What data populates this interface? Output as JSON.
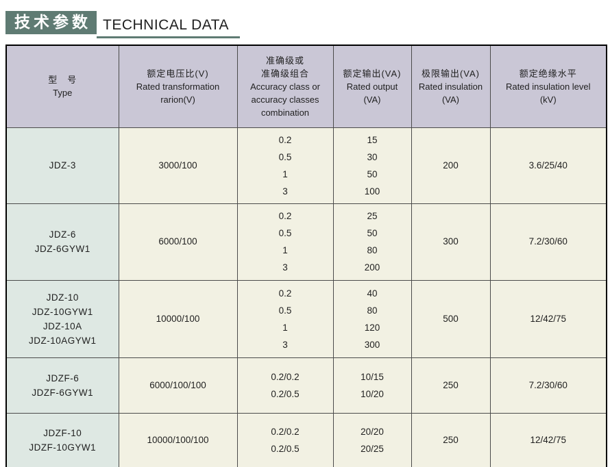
{
  "header": {
    "title_zh": "技术参数",
    "title_en": "TECHNICAL DATA"
  },
  "colors": {
    "accent_green": "#5f7b73",
    "table_header_bg": "#cac7d6",
    "type_column_bg": "#dee8e3",
    "data_cell_bg": "#f2f1e3",
    "outer_border": "#000000",
    "inner_border": "#4a4a4a"
  },
  "table": {
    "header": [
      {
        "zh_lines": [
          "型　号"
        ],
        "en_lines": [
          "Type"
        ]
      },
      {
        "zh_lines": [
          "额定电压比(V)"
        ],
        "en_lines": [
          "Rated transformation",
          "rarion(V)"
        ]
      },
      {
        "zh_lines": [
          "准确级或",
          "准确级组合"
        ],
        "en_lines": [
          "Accuracy class or",
          "accuracy classes",
          "combination"
        ]
      },
      {
        "zh_lines": [
          "额定输出(VA)"
        ],
        "en_lines": [
          "Rated output",
          "(VA)"
        ]
      },
      {
        "zh_lines": [
          "极限输出(VA)"
        ],
        "en_lines": [
          "Rated insulation",
          "(VA)"
        ]
      },
      {
        "zh_lines": [
          "额定绝缘水平"
        ],
        "en_lines": [
          "Rated insulation level",
          "(kV)"
        ]
      }
    ],
    "rows": [
      {
        "types": [
          "JDZ-3"
        ],
        "ratio": "3000/100",
        "accuracy": [
          "0.2",
          "0.5",
          "1",
          "3"
        ],
        "output": [
          "15",
          "30",
          "50",
          "100"
        ],
        "limit": "200",
        "insulation": "3.6/25/40"
      },
      {
        "types": [
          "JDZ-6",
          "JDZ-6GYW1"
        ],
        "ratio": "6000/100",
        "accuracy": [
          "0.2",
          "0.5",
          "1",
          "3"
        ],
        "output": [
          "25",
          "50",
          "80",
          "200"
        ],
        "limit": "300",
        "insulation": "7.2/30/60"
      },
      {
        "types": [
          "JDZ-10",
          "JDZ-10GYW1",
          "JDZ-10A",
          "JDZ-10AGYW1"
        ],
        "ratio": "10000/100",
        "accuracy": [
          "0.2",
          "0.5",
          "1",
          "3"
        ],
        "output": [
          "40",
          "80",
          "120",
          "300"
        ],
        "limit": "500",
        "insulation": "12/42/75"
      },
      {
        "types": [
          "JDZF-6",
          "JDZF-6GYW1"
        ],
        "ratio": "6000/100/100",
        "accuracy": [
          "0.2/0.2",
          "0.2/0.5"
        ],
        "output": [
          "10/15",
          "10/20"
        ],
        "limit": "250",
        "insulation": "7.2/30/60"
      },
      {
        "types": [
          "JDZF-10",
          "JDZF-10GYW1"
        ],
        "ratio": "10000/100/100",
        "accuracy": [
          "0.2/0.2",
          "0.2/0.5"
        ],
        "output": [
          "20/20",
          "20/25"
        ],
        "limit": "250",
        "insulation": "12/42/75"
      }
    ]
  }
}
